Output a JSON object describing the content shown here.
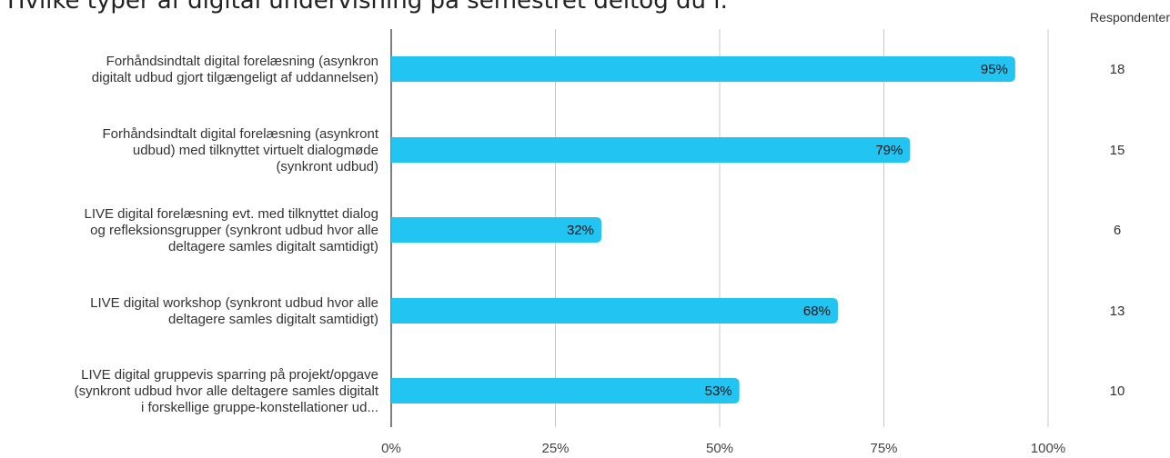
{
  "chart_data": {
    "type": "bar",
    "orientation": "horizontal",
    "title": "Hvilke typer af digital undervisning på semestret deltog du i:",
    "xlabel": "",
    "ylabel": "",
    "xlim": [
      0,
      100
    ],
    "x_ticks": [
      "0%",
      "25%",
      "50%",
      "75%",
      "100%"
    ],
    "grid": true,
    "bar_color": "#22c4f2",
    "respondents_header": "Respondenter",
    "categories": [
      [
        "Forhåndsindtalt digital forelæsning (asynkron",
        "digitalt udbud gjort tilgængeligt af uddannelsen)"
      ],
      [
        "Forhåndsindtalt digital forelæsning (asynkront",
        "udbud) med tilknyttet virtuelt dialogmøde",
        "(synkront udbud)"
      ],
      [
        "LIVE digital forelæsning evt. med tilknyttet dialog",
        "og refleksionsgrupper (synkront udbud hvor alle",
        "deltagere samles digitalt samtidigt)"
      ],
      [
        "LIVE digital workshop (synkront udbud hvor alle",
        "deltagere samles digitalt samtidigt)"
      ],
      [
        "LIVE digital gruppevis sparring på projekt/opgave",
        "(synkront udbud hvor alle deltagere samles digitalt",
        "i forskellige gruppe-konstellationer ud..."
      ]
    ],
    "values": [
      95,
      79,
      32,
      68,
      53
    ],
    "value_labels": [
      "95%",
      "79%",
      "32%",
      "68%",
      "53%"
    ],
    "respondents": [
      "18",
      "15",
      "6",
      "13",
      "10"
    ]
  }
}
